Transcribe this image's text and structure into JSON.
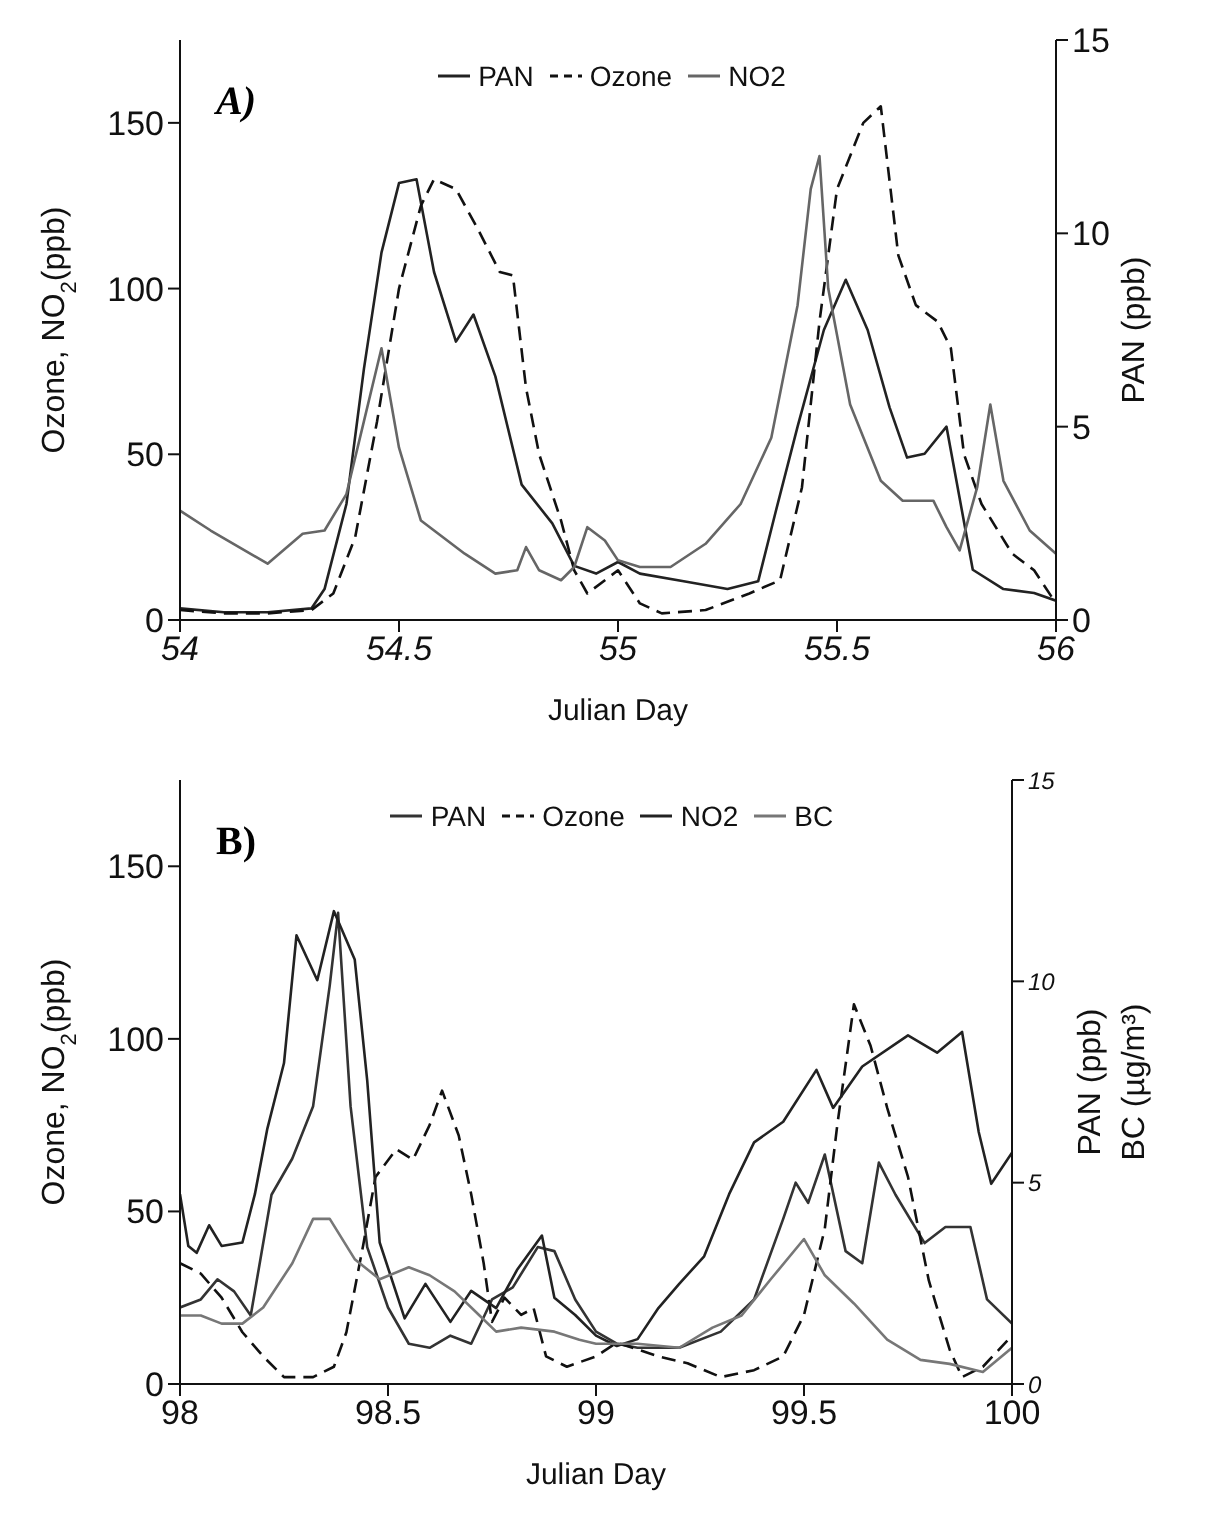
{
  "chart_data": [
    {
      "type": "line",
      "xlabel": "Julian Day",
      "ylabel": "Ozone, NO$_{2}$(ppb)",
      "y2label": "PAN (ppb)",
      "annotations": [
        "A)"
      ],
      "legend": "top",
      "xlim": [
        54,
        56
      ],
      "xticks": [
        54,
        54.5,
        55,
        55.5,
        56
      ],
      "ylim": [
        0,
        175
      ],
      "yticks": [
        0,
        50,
        100,
        150
      ],
      "y2lim": [
        0,
        15
      ],
      "y2ticks": [
        0,
        5,
        10,
        15
      ],
      "series": [
        {
          "name": "PAN",
          "color": "#222222",
          "axis": "y2",
          "line_style": "solid",
          "x": [
            54,
            54.1,
            54.2,
            54.3,
            54.33,
            54.38,
            54.42,
            54.46,
            54.5,
            54.54,
            54.58,
            54.63,
            54.67,
            54.72,
            54.78,
            54.85,
            54.9,
            54.95,
            55,
            55.05,
            55.15,
            55.25,
            55.32,
            55.36,
            55.41,
            55.47,
            55.52,
            55.57,
            55.62,
            55.66,
            55.7,
            55.75,
            55.81,
            55.88,
            55.95,
            56
          ],
          "values": [
            0.3,
            0.2,
            0.2,
            0.3,
            0.8,
            3,
            6.5,
            9.5,
            11.3,
            11.4,
            9,
            7.2,
            7.9,
            6.3,
            3.5,
            2.5,
            1.4,
            1.2,
            1.5,
            1.2,
            1,
            0.8,
            1,
            2.8,
            5,
            7.5,
            8.8,
            7.5,
            5.5,
            4.2,
            4.3,
            5,
            1.3,
            0.8,
            0.7,
            0.5
          ]
        },
        {
          "name": "Ozone",
          "color": "#111111",
          "line_style": "dashed",
          "x": [
            54,
            54.1,
            54.2,
            54.3,
            54.35,
            54.4,
            54.45,
            54.5,
            54.55,
            54.58,
            54.63,
            54.68,
            54.73,
            54.76,
            54.79,
            54.82,
            54.87,
            54.9,
            54.93,
            55,
            55.05,
            55.1,
            55.2,
            55.3,
            55.37,
            55.42,
            55.46,
            55.5,
            55.56,
            55.6,
            55.64,
            55.68,
            55.73,
            55.76,
            55.79,
            55.83,
            55.9,
            55.95,
            56
          ],
          "values": [
            3,
            2,
            2,
            3,
            8,
            25,
            60,
            100,
            125,
            133,
            130,
            118,
            105,
            104,
            70,
            50,
            30,
            15,
            8,
            15,
            5,
            2,
            3,
            8,
            12,
            40,
            90,
            130,
            150,
            155,
            110,
            95,
            90,
            82,
            50,
            35,
            20,
            15,
            5
          ]
        },
        {
          "name": "NO2",
          "color": "#666666",
          "line_style": "solid",
          "x": [
            54,
            54.07,
            54.2,
            54.28,
            54.33,
            54.38,
            54.42,
            54.46,
            54.5,
            54.55,
            54.65,
            54.72,
            54.77,
            54.79,
            54.82,
            54.87,
            54.9,
            54.93,
            54.97,
            55,
            55.05,
            55.12,
            55.2,
            55.28,
            55.35,
            55.41,
            55.44,
            55.46,
            55.48,
            55.53,
            55.6,
            55.65,
            55.72,
            55.75,
            55.78,
            55.82,
            55.85,
            55.88,
            55.94,
            56
          ],
          "values": [
            33,
            27,
            17,
            26,
            27,
            38,
            60,
            82,
            52,
            30,
            20,
            14,
            15,
            22,
            15,
            12,
            16,
            28,
            24,
            18,
            16,
            16,
            23,
            35,
            55,
            95,
            130,
            140,
            100,
            65,
            42,
            36,
            36,
            28,
            21,
            40,
            65,
            42,
            27,
            20
          ]
        }
      ]
    },
    {
      "type": "line",
      "xlabel": "Julian Day",
      "ylabel": "Ozone, NO$_{2}$(ppb)",
      "y2label": "PAN (ppb)\nBC (µg/m³)",
      "annotations": [
        "B)"
      ],
      "legend": "top",
      "xlim": [
        98,
        100
      ],
      "xticks": [
        98,
        98.5,
        99,
        99.5,
        100
      ],
      "ylim": [
        0,
        175
      ],
      "yticks": [
        0,
        50,
        100,
        150
      ],
      "y2lim": [
        0,
        15
      ],
      "y2ticks": [
        0,
        5,
        10,
        15
      ],
      "series": [
        {
          "name": "PAN",
          "color": "#333333",
          "axis": "y2",
          "line_style": "solid",
          "x": [
            98,
            98.05,
            98.09,
            98.13,
            98.17,
            98.22,
            98.27,
            98.32,
            98.36,
            98.38,
            98.41,
            98.45,
            98.5,
            98.55,
            98.6,
            98.65,
            98.7,
            98.75,
            98.8,
            98.86,
            98.9,
            98.95,
            99,
            99.05,
            99.1,
            99.2,
            99.3,
            99.38,
            99.45,
            99.48,
            99.51,
            99.55,
            99.6,
            99.64,
            99.68,
            99.72,
            99.79,
            99.84,
            99.9,
            99.94,
            100
          ],
          "values": [
            1.9,
            2.1,
            2.6,
            2.3,
            1.7,
            4.7,
            5.6,
            6.9,
            9.9,
            11.7,
            6.9,
            3.4,
            1.9,
            1,
            0.9,
            1.2,
            1,
            2.1,
            2.4,
            3.4,
            3.3,
            2.1,
            1.3,
            1,
            0.9,
            0.9,
            1.3,
            2.1,
            4.1,
            5,
            4.5,
            5.7,
            3.3,
            3,
            5.5,
            4.7,
            3.5,
            3.9,
            3.9,
            2.1,
            1.5
          ]
        },
        {
          "name": "Ozone",
          "color": "#111111",
          "line_style": "dashed",
          "x": [
            98,
            98.05,
            98.1,
            98.15,
            98.2,
            98.25,
            98.32,
            98.37,
            98.4,
            98.44,
            98.47,
            98.52,
            98.56,
            98.6,
            98.63,
            98.67,
            98.7,
            98.73,
            98.75,
            98.78,
            98.82,
            98.85,
            98.88,
            98.93,
            99,
            99.05,
            99.1,
            99.15,
            99.22,
            99.3,
            99.38,
            99.45,
            99.5,
            99.55,
            99.58,
            99.62,
            99.66,
            99.7,
            99.75,
            99.8,
            99.85,
            99.88,
            99.93,
            100
          ],
          "values": [
            35,
            32,
            25,
            15,
            8,
            2,
            2,
            5,
            15,
            40,
            60,
            68,
            65,
            75,
            85,
            72,
            55,
            35,
            18,
            25,
            20,
            22,
            8,
            5,
            8,
            12,
            10,
            8,
            6,
            2,
            4,
            8,
            20,
            45,
            75,
            110,
            98,
            80,
            60,
            30,
            10,
            2,
            5,
            14
          ]
        },
        {
          "name": "NO2",
          "color": "#222222",
          "line_style": "solid",
          "x": [
            98,
            98.02,
            98.04,
            98.07,
            98.1,
            98.15,
            98.18,
            98.21,
            98.25,
            98.28,
            98.33,
            98.37,
            98.42,
            98.45,
            98.48,
            98.54,
            98.59,
            98.65,
            98.7,
            98.76,
            98.81,
            98.87,
            98.9,
            98.95,
            99,
            99.05,
            99.1,
            99.15,
            99.2,
            99.26,
            99.32,
            99.38,
            99.45,
            99.53,
            99.57,
            99.64,
            99.75,
            99.82,
            99.88,
            99.92,
            99.95,
            100
          ],
          "values": [
            55,
            40,
            38,
            46,
            40,
            41,
            55,
            74,
            93,
            130,
            117,
            137,
            123,
            88,
            41,
            19,
            29,
            18,
            27,
            22,
            33,
            43,
            25,
            20,
            14,
            11,
            13,
            22,
            29,
            37,
            55,
            70,
            76,
            91,
            80,
            92,
            101,
            96,
            102,
            73,
            58,
            67
          ]
        },
        {
          "name": "BC",
          "color": "#777777",
          "axis": "y2",
          "line_style": "solid",
          "x": [
            98,
            98.05,
            98.1,
            98.15,
            98.2,
            98.27,
            98.32,
            98.36,
            98.42,
            98.48,
            98.55,
            98.6,
            98.66,
            98.72,
            98.76,
            98.82,
            98.9,
            98.96,
            99,
            99.1,
            99.2,
            99.28,
            99.35,
            99.42,
            99.5,
            99.55,
            99.62,
            99.7,
            99.78,
            99.85,
            99.93,
            100
          ],
          "values": [
            1.7,
            1.7,
            1.5,
            1.5,
            1.9,
            3,
            4.1,
            4.1,
            3.1,
            2.6,
            2.9,
            2.7,
            2.3,
            1.7,
            1.3,
            1.4,
            1.3,
            1.1,
            1,
            1,
            0.9,
            1.4,
            1.7,
            2.6,
            3.6,
            2.7,
            2,
            1.1,
            0.6,
            0.5,
            0.3,
            0.9
          ]
        }
      ]
    }
  ]
}
